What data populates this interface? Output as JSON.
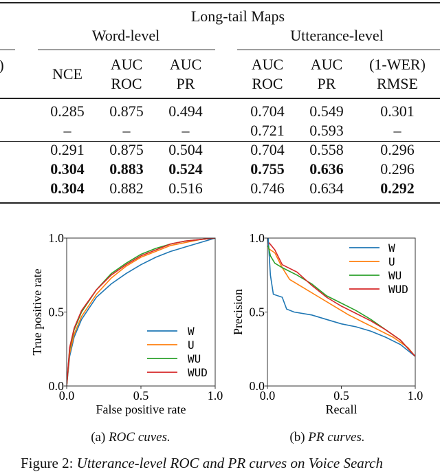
{
  "table": {
    "group_header": "Long-tail Maps",
    "subgroups": [
      "Word-level",
      "Utterance-level"
    ],
    "cut_left_header": ")",
    "columns": [
      {
        "l1": "",
        "l2": "NCE"
      },
      {
        "l1": "AUC",
        "l2": "ROC"
      },
      {
        "l1": "AUC",
        "l2": "PR"
      },
      {
        "l1": "AUC",
        "l2": "ROC"
      },
      {
        "l1": "AUC",
        "l2": "PR"
      },
      {
        "l1": "(1-WER)",
        "l2": "RMSE"
      }
    ],
    "rows": [
      {
        "cells": [
          "0.285",
          "0.875",
          "0.494",
          "0.704",
          "0.549",
          "0.301"
        ],
        "bold": [
          false,
          false,
          false,
          false,
          false,
          false
        ]
      },
      {
        "cells": [
          "–",
          "–",
          "–",
          "0.721",
          "0.593",
          "–"
        ],
        "bold": [
          false,
          false,
          false,
          false,
          false,
          false
        ]
      },
      {
        "cells": [
          "0.291",
          "0.875",
          "0.504",
          "0.704",
          "0.558",
          "0.296"
        ],
        "bold": [
          false,
          false,
          false,
          false,
          false,
          false
        ]
      },
      {
        "cells": [
          "0.304",
          "0.883",
          "0.524",
          "0.755",
          "0.636",
          "0.296"
        ],
        "bold": [
          true,
          true,
          true,
          true,
          true,
          false
        ]
      },
      {
        "cells": [
          "0.304",
          "0.882",
          "0.516",
          "0.746",
          "0.634",
          "0.292"
        ],
        "bold": [
          true,
          false,
          false,
          false,
          false,
          true
        ]
      }
    ]
  },
  "captions": {
    "a_prefix": "(a) ",
    "a_text": "ROC cuves.",
    "b_prefix": "(b) ",
    "b_text": "PR curves.",
    "figure_prefix": "Figure 2: ",
    "figure_text": "Utterance-level ROC and PR curves on Voice Search"
  },
  "chart_data": [
    {
      "type": "line",
      "title": "",
      "xlabel": "False positive rate",
      "ylabel": "True positive rate",
      "xlim": [
        0,
        1
      ],
      "ylim": [
        0,
        1
      ],
      "xticks": [
        "0.0",
        "0.5",
        "1.0"
      ],
      "yticks": [
        "0.0",
        "0.5",
        "1.0"
      ],
      "legend": "lower-right",
      "series": [
        {
          "name": "W",
          "color": "#1f77b4",
          "points": [
            [
              0,
              0
            ],
            [
              0.02,
              0.2
            ],
            [
              0.05,
              0.33
            ],
            [
              0.1,
              0.45
            ],
            [
              0.2,
              0.6
            ],
            [
              0.3,
              0.69
            ],
            [
              0.4,
              0.76
            ],
            [
              0.5,
              0.82
            ],
            [
              0.6,
              0.87
            ],
            [
              0.7,
              0.91
            ],
            [
              0.8,
              0.94
            ],
            [
              0.9,
              0.97
            ],
            [
              1,
              1
            ]
          ]
        },
        {
          "name": "U",
          "color": "#ff7f0e",
          "points": [
            [
              0,
              0
            ],
            [
              0.02,
              0.22
            ],
            [
              0.05,
              0.35
            ],
            [
              0.1,
              0.47
            ],
            [
              0.2,
              0.62
            ],
            [
              0.3,
              0.73
            ],
            [
              0.4,
              0.81
            ],
            [
              0.5,
              0.87
            ],
            [
              0.6,
              0.91
            ],
            [
              0.7,
              0.95
            ],
            [
              0.8,
              0.97
            ],
            [
              0.9,
              0.99
            ],
            [
              1,
              1
            ]
          ]
        },
        {
          "name": "WU",
          "color": "#2ca02c",
          "points": [
            [
              0,
              0
            ],
            [
              0.02,
              0.25
            ],
            [
              0.05,
              0.38
            ],
            [
              0.1,
              0.5
            ],
            [
              0.2,
              0.65
            ],
            [
              0.3,
              0.76
            ],
            [
              0.4,
              0.83
            ],
            [
              0.5,
              0.89
            ],
            [
              0.6,
              0.93
            ],
            [
              0.7,
              0.96
            ],
            [
              0.8,
              0.98
            ],
            [
              0.9,
              0.99
            ],
            [
              1,
              1
            ]
          ]
        },
        {
          "name": "WUD",
          "color": "#d62728",
          "points": [
            [
              0,
              0
            ],
            [
              0.02,
              0.26
            ],
            [
              0.05,
              0.39
            ],
            [
              0.1,
              0.51
            ],
            [
              0.2,
              0.65
            ],
            [
              0.3,
              0.75
            ],
            [
              0.4,
              0.82
            ],
            [
              0.5,
              0.88
            ],
            [
              0.6,
              0.92
            ],
            [
              0.7,
              0.96
            ],
            [
              0.8,
              0.98
            ],
            [
              0.9,
              0.99
            ],
            [
              1,
              1
            ]
          ]
        }
      ]
    },
    {
      "type": "line",
      "title": "",
      "xlabel": "Recall",
      "ylabel": "Precision",
      "xlim": [
        0,
        1
      ],
      "ylim": [
        0,
        1
      ],
      "xticks": [
        "0.0",
        "0.5",
        "1.0"
      ],
      "yticks": [
        "0.0",
        "0.5",
        "1.0"
      ],
      "legend": "upper-right",
      "series": [
        {
          "name": "W",
          "color": "#1f77b4",
          "points": [
            [
              0.005,
              1.0
            ],
            [
              0.02,
              0.75
            ],
            [
              0.04,
              0.62
            ],
            [
              0.1,
              0.6
            ],
            [
              0.13,
              0.52
            ],
            [
              0.18,
              0.5
            ],
            [
              0.3,
              0.48
            ],
            [
              0.4,
              0.45
            ],
            [
              0.5,
              0.42
            ],
            [
              0.6,
              0.4
            ],
            [
              0.7,
              0.37
            ],
            [
              0.8,
              0.33
            ],
            [
              0.9,
              0.28
            ],
            [
              1,
              0.2
            ]
          ]
        },
        {
          "name": "U",
          "color": "#ff7f0e",
          "points": [
            [
              0.005,
              0.93
            ],
            [
              0.05,
              0.9
            ],
            [
              0.1,
              0.8
            ],
            [
              0.15,
              0.72
            ],
            [
              0.25,
              0.66
            ],
            [
              0.35,
              0.6
            ],
            [
              0.45,
              0.54
            ],
            [
              0.55,
              0.48
            ],
            [
              0.65,
              0.43
            ],
            [
              0.75,
              0.38
            ],
            [
              0.85,
              0.33
            ],
            [
              0.95,
              0.26
            ],
            [
              1,
              0.2
            ]
          ]
        },
        {
          "name": "WU",
          "color": "#2ca02c",
          "points": [
            [
              0.005,
              0.95
            ],
            [
              0.02,
              0.88
            ],
            [
              0.05,
              0.83
            ],
            [
              0.1,
              0.8
            ],
            [
              0.2,
              0.75
            ],
            [
              0.3,
              0.69
            ],
            [
              0.4,
              0.61
            ],
            [
              0.5,
              0.56
            ],
            [
              0.6,
              0.51
            ],
            [
              0.7,
              0.45
            ],
            [
              0.8,
              0.38
            ],
            [
              0.9,
              0.31
            ],
            [
              1,
              0.2
            ]
          ]
        },
        {
          "name": "WUD",
          "color": "#d62728",
          "points": [
            [
              0.01,
              0.97
            ],
            [
              0.05,
              0.92
            ],
            [
              0.1,
              0.82
            ],
            [
              0.2,
              0.77
            ],
            [
              0.3,
              0.68
            ],
            [
              0.4,
              0.6
            ],
            [
              0.5,
              0.54
            ],
            [
              0.6,
              0.49
            ],
            [
              0.7,
              0.44
            ],
            [
              0.8,
              0.38
            ],
            [
              0.9,
              0.31
            ],
            [
              1,
              0.2
            ]
          ]
        }
      ]
    }
  ]
}
